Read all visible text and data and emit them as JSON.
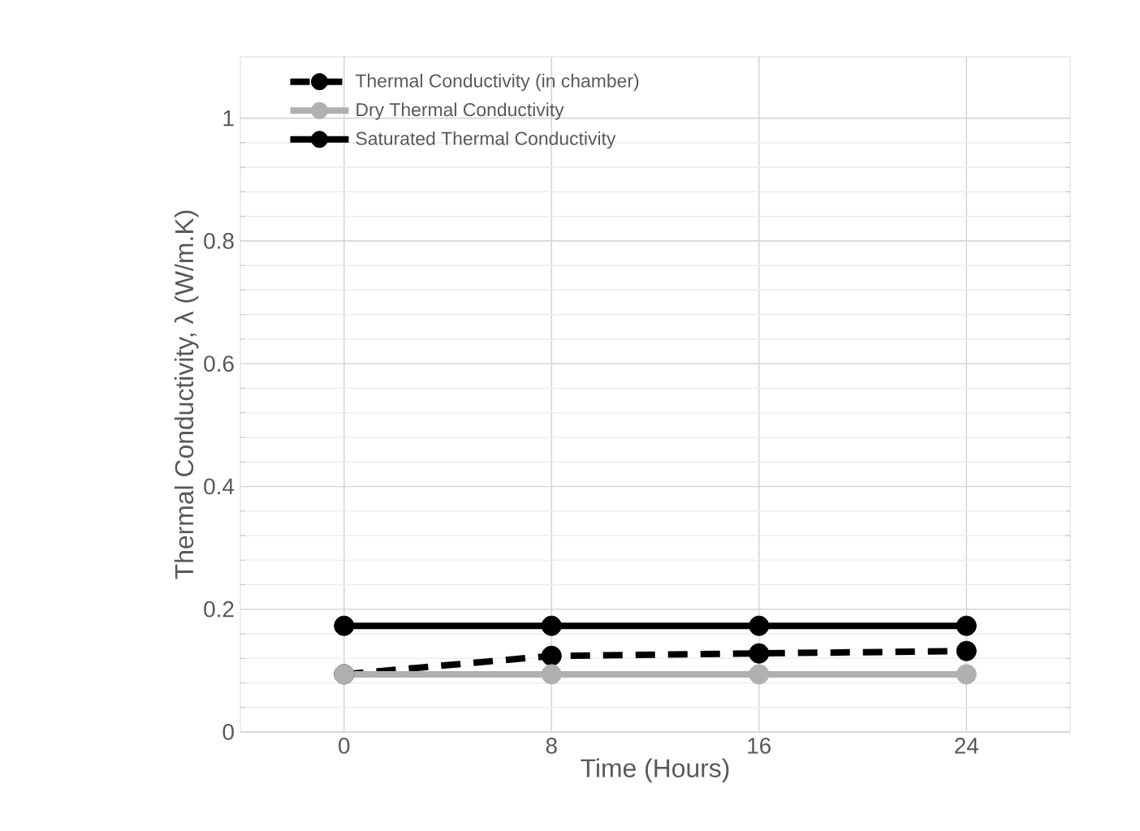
{
  "chart_data": {
    "type": "line",
    "xlabel": "Time (Hours)",
    "ylabel": "Thermal Conductivity, λ (W/m.K)",
    "x": [
      0,
      8,
      16,
      24
    ],
    "series": [
      {
        "name": "Thermal Conductivity (in chamber)",
        "color": "#000000",
        "line_style": "dashed",
        "values": [
          0.094,
          0.124,
          0.128,
          0.132
        ]
      },
      {
        "name": "Dry Thermal Conductivity",
        "color": "#b0b0b0",
        "line_style": "solid",
        "values": [
          0.094,
          0.094,
          0.094,
          0.094
        ]
      },
      {
        "name": "Saturated Thermal Conductivity",
        "color": "#000000",
        "line_style": "solid",
        "values": [
          0.173,
          0.173,
          0.173,
          0.173
        ]
      }
    ],
    "xlim": [
      -4,
      28
    ],
    "xticks": [
      0,
      8,
      16,
      24
    ],
    "ylim": [
      0,
      1.1
    ],
    "yticks": [
      0,
      0.2,
      0.4,
      0.6,
      0.8,
      1
    ],
    "grid": true,
    "legend": "top left",
    "marker": "circle"
  }
}
